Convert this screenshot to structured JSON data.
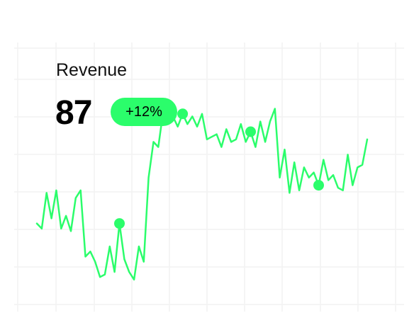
{
  "card": {
    "title": "Revenue",
    "value": "87",
    "change": "+12%"
  },
  "colors": {
    "accent": "#2bfd6b",
    "text": "#111111",
    "grid": "#f2f2f2"
  },
  "chart_data": {
    "type": "line",
    "grid": true,
    "ylim": [
      0,
      100
    ],
    "x": [
      0,
      1,
      2,
      3,
      4,
      5,
      6,
      7,
      8,
      9,
      10,
      11,
      12,
      13,
      14,
      15,
      16,
      17,
      18,
      19,
      20,
      21,
      22,
      23,
      24,
      25,
      26,
      27,
      28,
      29,
      30,
      31,
      32,
      33,
      34,
      35,
      36,
      37,
      38,
      39,
      40,
      41,
      42,
      43,
      44,
      45,
      46,
      47,
      48,
      49,
      50,
      51,
      52,
      53,
      54,
      55,
      56,
      57,
      58,
      59,
      60,
      61,
      62,
      63,
      64,
      65,
      66,
      67,
      68
    ],
    "series": [
      {
        "values": [
          29,
          27,
          41,
          31,
          42,
          27,
          32,
          26,
          39,
          42,
          16,
          18,
          14,
          8,
          9,
          20,
          10,
          29,
          15,
          10,
          7,
          20,
          14,
          47,
          61,
          59,
          73,
          68,
          71,
          67,
          72,
          68,
          71,
          67,
          72,
          62,
          63,
          64,
          59,
          66,
          61,
          62,
          68,
          61,
          65,
          59,
          69,
          61,
          69,
          74,
          47,
          58,
          41,
          53,
          42,
          51,
          47,
          49,
          44,
          54,
          46,
          48,
          43,
          42,
          56,
          44,
          51,
          52,
          62
        ],
        "highlight_indices": [
          17,
          30,
          44,
          58
        ]
      }
    ]
  }
}
